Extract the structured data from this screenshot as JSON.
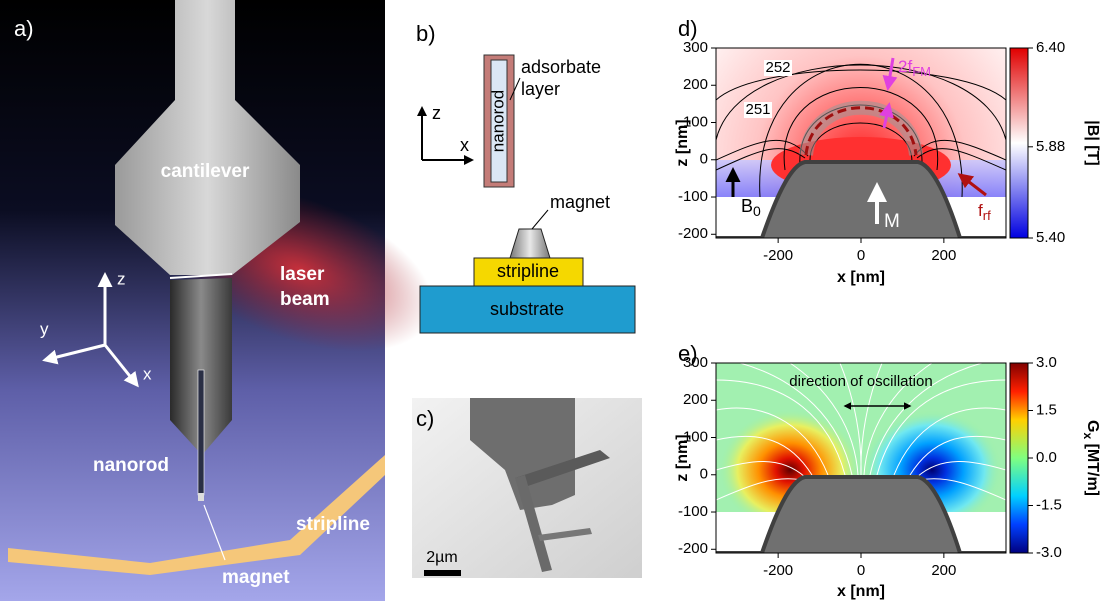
{
  "panel_labels": [
    "a)",
    "b)",
    "c)",
    "d)",
    "e)"
  ],
  "a": {
    "cantilever": "cantilever",
    "laser_beam": [
      "laser",
      "beam"
    ],
    "nanorod": "nanorod",
    "stripline": "stripline",
    "magnet": "magnet",
    "axes": {
      "z": "z",
      "y": "y",
      "x": "x"
    }
  },
  "b": {
    "axes": {
      "z": "z",
      "x": "x"
    },
    "nanorod": "nanorod",
    "adsorbate_layer": [
      "adsorbate",
      "layer"
    ],
    "magnet": "magnet",
    "stripline": "stripline",
    "substrate": "substrate"
  },
  "c": {
    "scale_bar": "2µm"
  },
  "d": {
    "xlabel": "x [nm]",
    "ylabel": "z [nm]",
    "xlim": [
      -350,
      350
    ],
    "ylim": [
      -210,
      300
    ],
    "xticks": [
      -200,
      0,
      200
    ],
    "yticks": [
      -200,
      -100,
      0,
      100,
      200,
      300
    ],
    "colorbar": {
      "label": "|B| [T]",
      "lim": [
        5.4,
        6.4
      ],
      "ticks": [
        {
          "value": 6.4,
          "label": "6.40"
        },
        {
          "value": 5.88,
          "label": "5.88"
        },
        {
          "value": 5.4,
          "label": "5.40"
        }
      ]
    },
    "contour_labels": [
      252,
      251
    ],
    "annotations": {
      "two_f_fm": {
        "main": "2f",
        "sub": "FM"
      },
      "f_rf": {
        "main": "f",
        "sub": "rf"
      },
      "b0": {
        "main": "B",
        "sub": "0"
      },
      "m": "M"
    }
  },
  "e": {
    "xlabel": "x [nm]",
    "ylabel": "z [nm]",
    "xlim": [
      -350,
      350
    ],
    "ylim": [
      -210,
      300
    ],
    "xticks": [
      -200,
      0,
      200
    ],
    "yticks": [
      -200,
      -100,
      0,
      100,
      200,
      300
    ],
    "colorbar": {
      "label": {
        "main": "G",
        "sub": "x",
        "unit": " [MT/m]"
      },
      "lim": [
        -3,
        3
      ],
      "ticks": [
        {
          "value": 3,
          "label": "3.0"
        },
        1.5,
        {
          "value": 0,
          "label": "0.0"
        },
        -1.5,
        {
          "value": -3,
          "label": "-3.0"
        }
      ]
    },
    "annotation": "direction of oscillation"
  }
}
